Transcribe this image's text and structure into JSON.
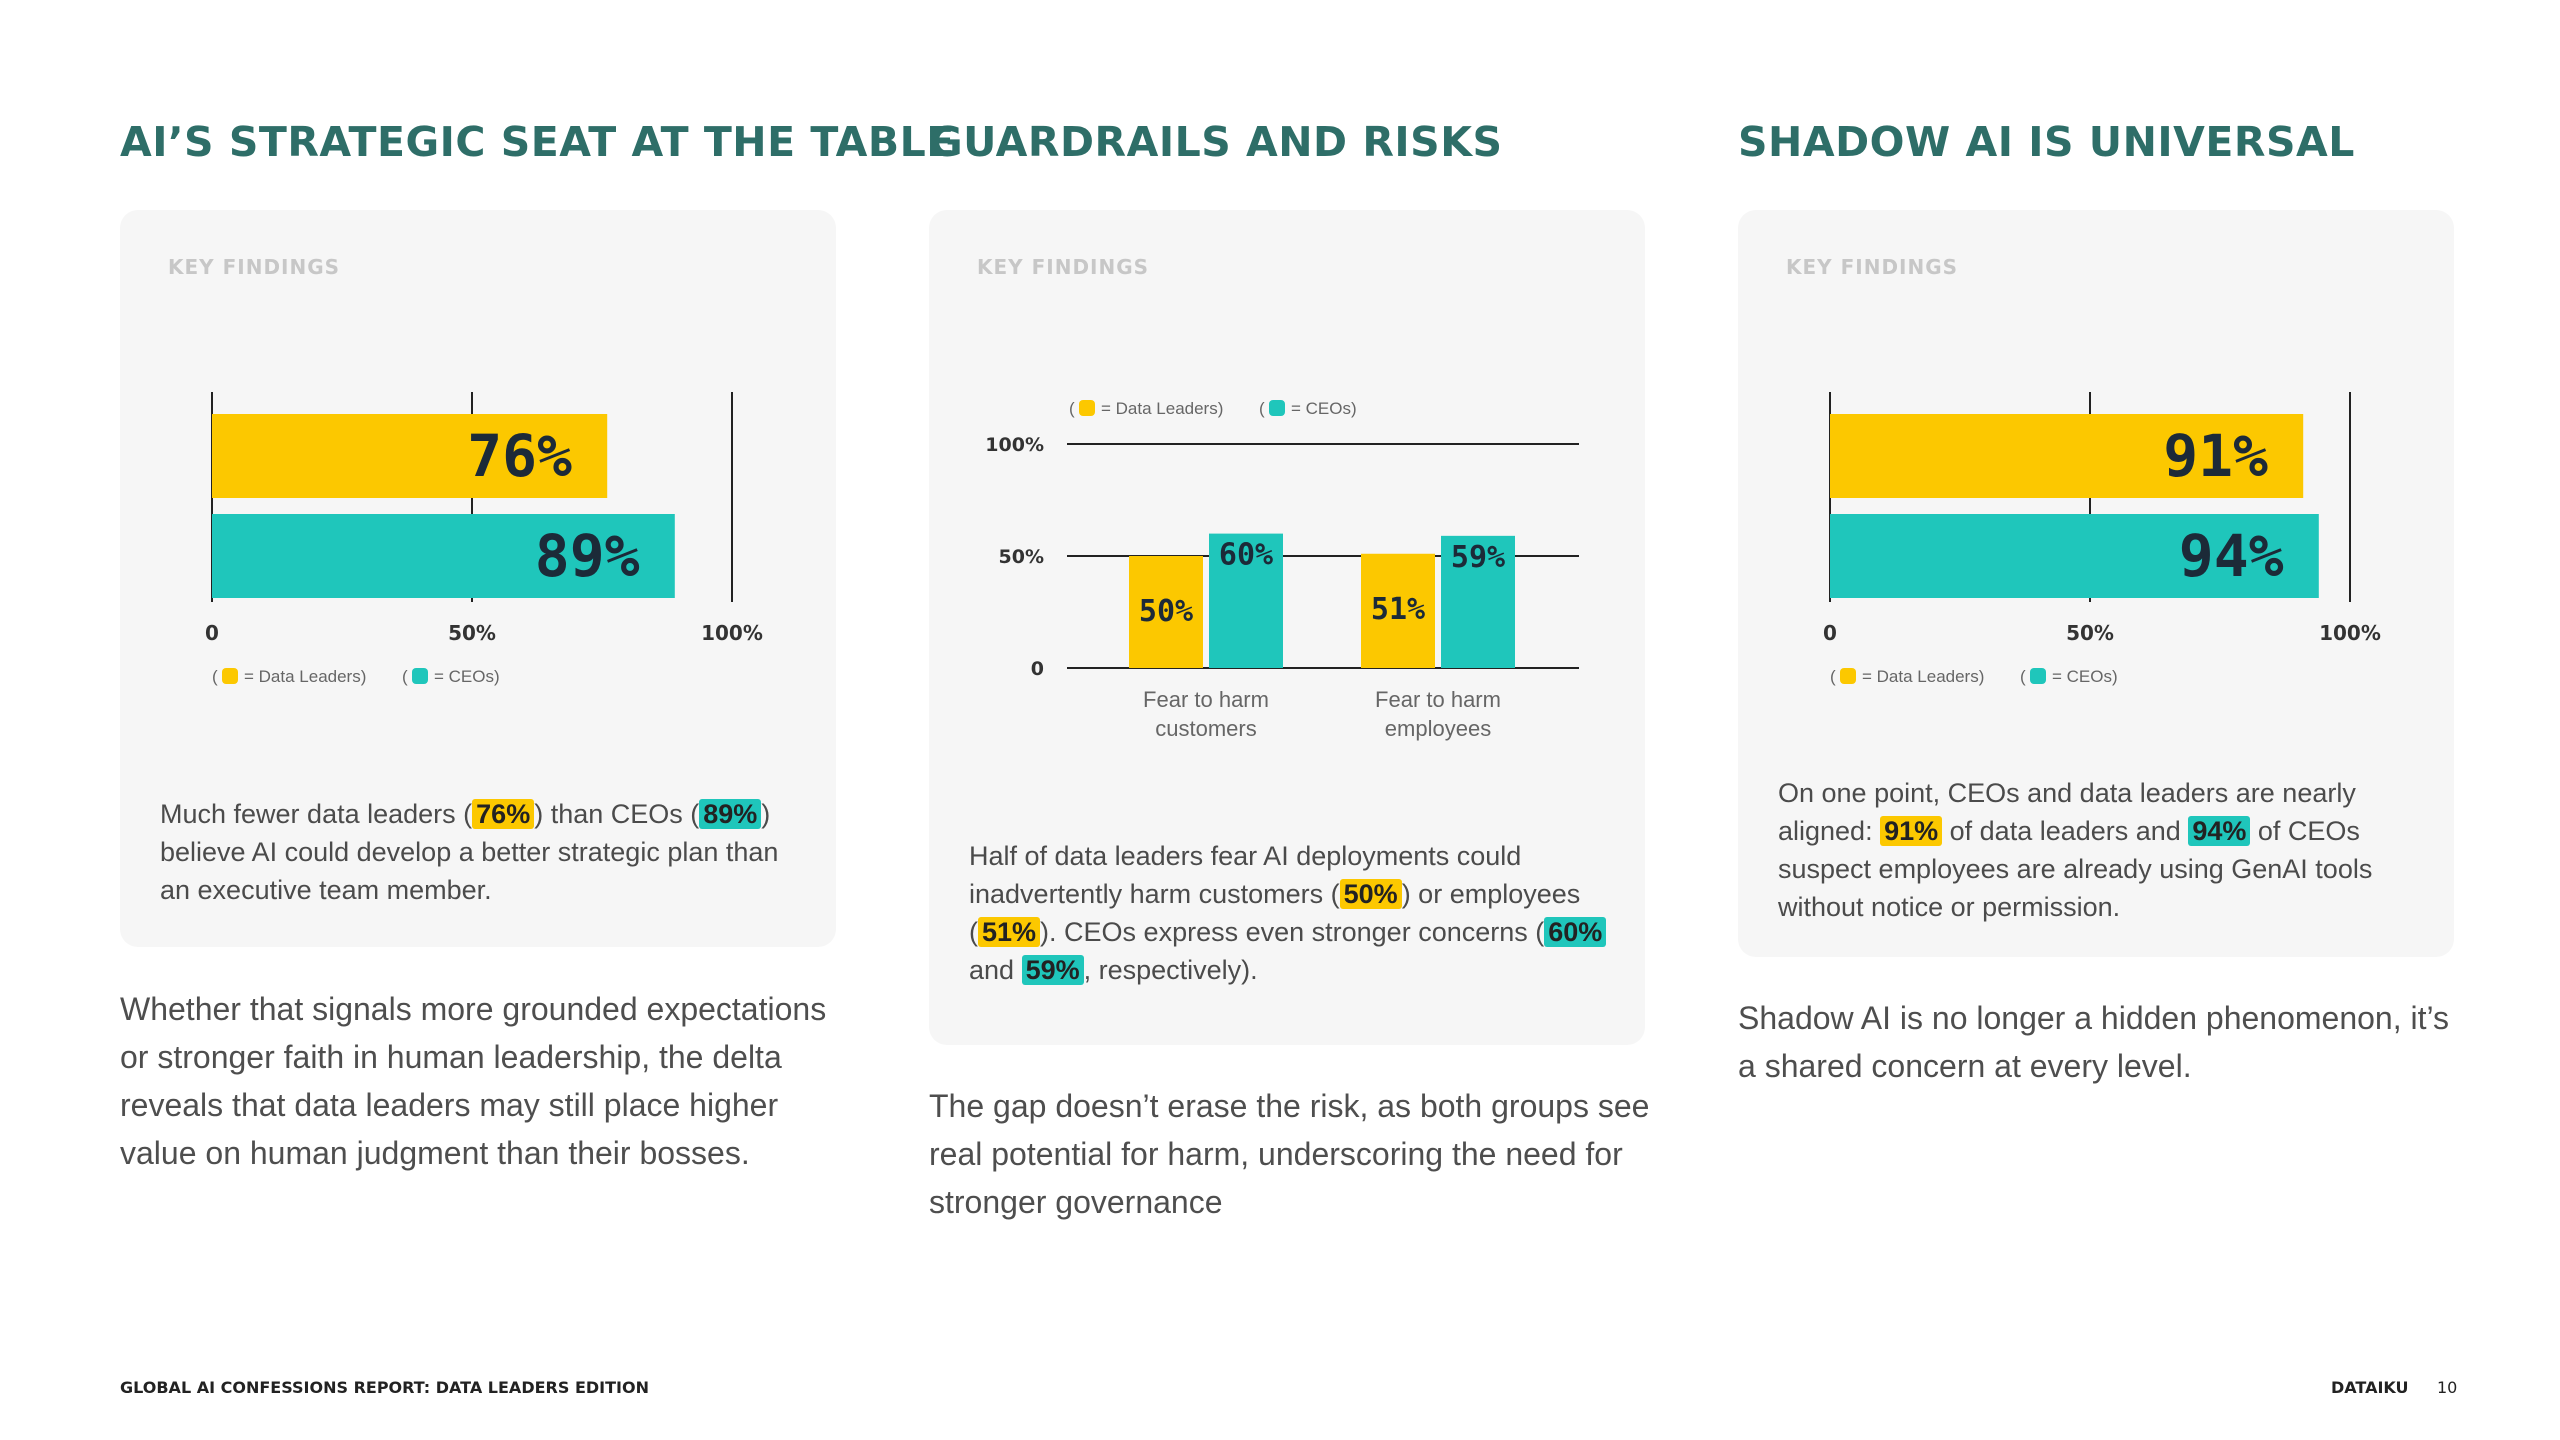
{
  "colors": {
    "heading": "#2e6e68",
    "data_leaders": "#fcc800",
    "ceos": "#1fc6bb",
    "card_bg": "#f6f6f6"
  },
  "legend": {
    "data_leaders": "= Data Leaders)",
    "ceos": "= CEOs)",
    "open_paren": "("
  },
  "col1": {
    "title": "AI’S STRATEGIC SEAT AT THE TABLE",
    "kf": "KEY FINDINGS",
    "text_a": "Much fewer data leaders (",
    "hl_a": "76%",
    "text_b": ") than CEOs (",
    "hl_b": "89%",
    "text_c": ") believe AI could develop a better strategic plan than an executive team member.",
    "below": "Whether that signals more grounded expectations or stronger faith in human leadership, the delta reveals that data leaders may still place higher value on human judgment than their bosses."
  },
  "col2": {
    "title": "GUARDRAILS AND RISKS",
    "kf": "KEY FINDINGS",
    "text_a": "Half of data leaders fear AI deployments could inadvertently harm customers (",
    "hl_a": "50%",
    "text_b": ") or employees (",
    "hl_b": "51%",
    "text_c": "). CEOs express even stronger concerns (",
    "hl_c": "60%",
    "text_d": " and ",
    "hl_d": "59%",
    "text_e": ", respectively).",
    "below": "The gap doesn’t erase the risk, as both groups see real potential for harm, underscoring the need for stronger governance"
  },
  "col3": {
    "title": "SHADOW AI IS UNIVERSAL",
    "kf": "KEY FINDINGS",
    "text_a": "On one point, CEOs and data leaders are nearly aligned: ",
    "hl_a": "91%",
    "text_b": " of data leaders and ",
    "hl_b": "94%",
    "text_c": " of CEOs suspect employees are already using GenAI tools without notice or permission.",
    "below": "Shadow AI is no longer a hidden phenomenon, it’s a shared concern at every level."
  },
  "chart_data": [
    {
      "type": "bar",
      "orientation": "horizontal",
      "series": [
        {
          "name": "Data Leaders",
          "values": [
            76
          ],
          "labels": [
            "76%"
          ]
        },
        {
          "name": "CEOs",
          "values": [
            89
          ],
          "labels": [
            "89%"
          ]
        }
      ],
      "xlim": [
        0,
        100
      ],
      "ticks": [
        "0",
        "50%",
        "100%"
      ],
      "legend": "bottom-left"
    },
    {
      "type": "bar",
      "orientation": "vertical",
      "categories": [
        "Fear to harm customers",
        "Fear to harm employees"
      ],
      "category_lines": [
        [
          "Fear to harm",
          "customers"
        ],
        [
          "Fear to harm",
          "employees"
        ]
      ],
      "series": [
        {
          "name": "Data Leaders",
          "values": [
            50,
            51
          ],
          "labels": [
            "50%",
            "51%"
          ]
        },
        {
          "name": "CEOs",
          "values": [
            60,
            59
          ],
          "labels": [
            "60%",
            "59%"
          ]
        }
      ],
      "ylim": [
        0,
        100
      ],
      "ticks": [
        "0",
        "50%",
        "100%"
      ],
      "legend": "top-left"
    },
    {
      "type": "bar",
      "orientation": "horizontal",
      "series": [
        {
          "name": "Data Leaders",
          "values": [
            91
          ],
          "labels": [
            "91%"
          ]
        },
        {
          "name": "CEOs",
          "values": [
            94
          ],
          "labels": [
            "94%"
          ]
        }
      ],
      "xlim": [
        0,
        100
      ],
      "ticks": [
        "0",
        "50%",
        "100%"
      ],
      "legend": "bottom-left"
    }
  ],
  "footer": {
    "report": "GLOBAL AI CONFESSIONS REPORT: DATA LEADERS EDITION",
    "brand": "DATAIKU",
    "page": "10"
  }
}
